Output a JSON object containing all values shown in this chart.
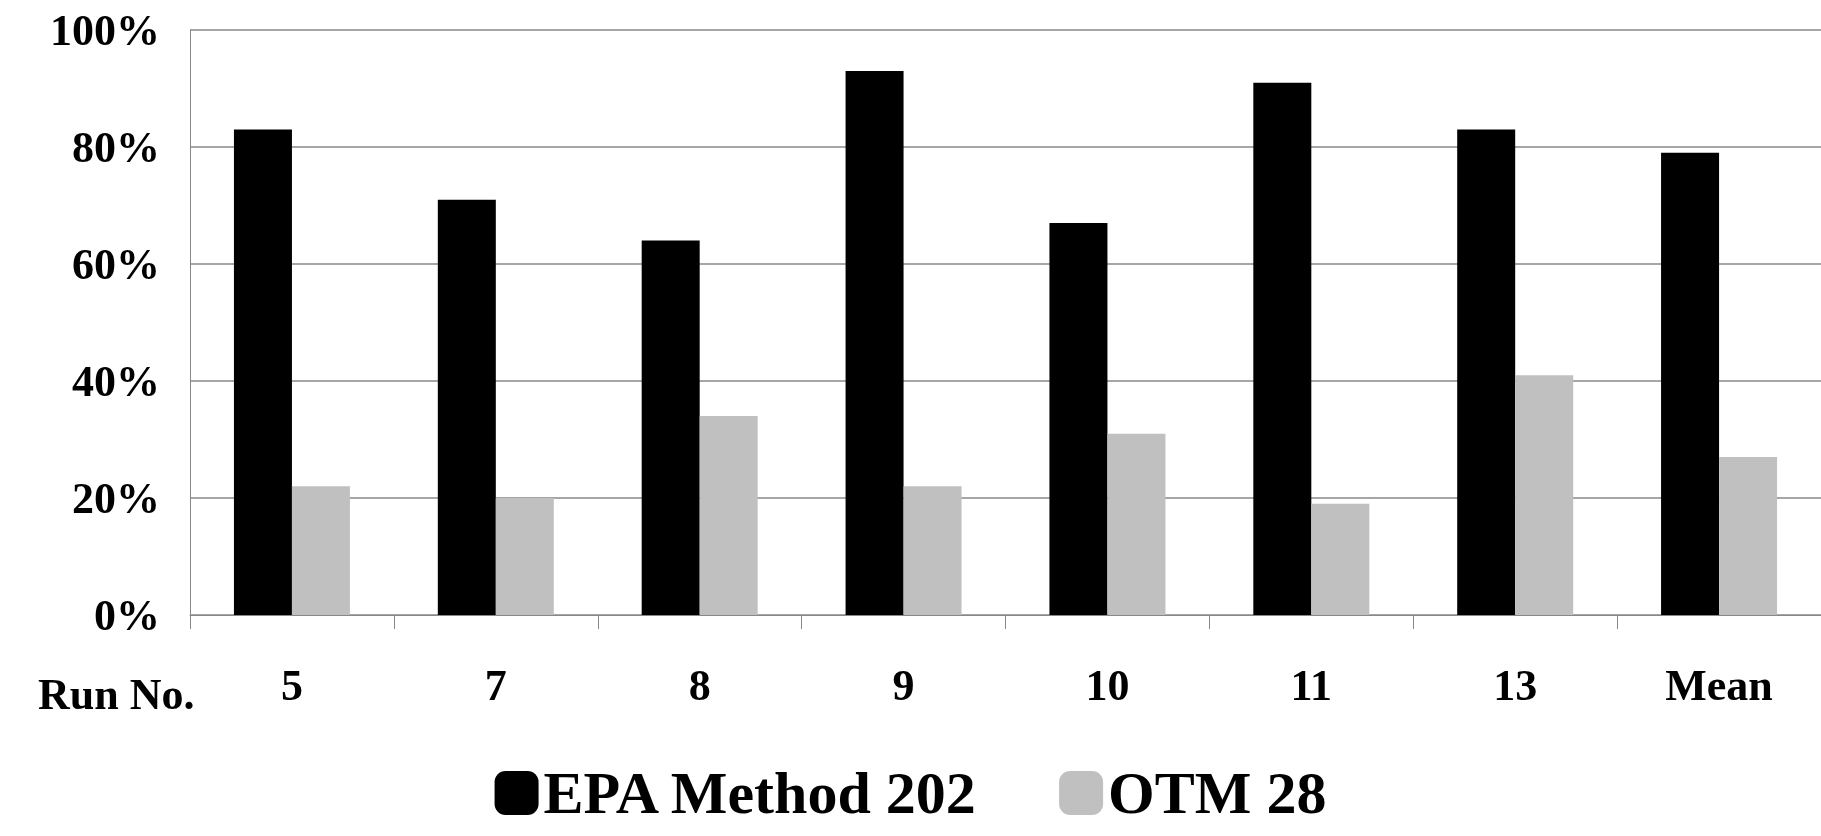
{
  "chart_data": {
    "type": "bar",
    "xlabel": "Run No.",
    "categories": [
      "5",
      "7",
      "8",
      "9",
      "10",
      "11",
      "13",
      "Mean"
    ],
    "series": [
      {
        "name": "EPA Method 202",
        "color": "#000000",
        "values": [
          83,
          71,
          64,
          93,
          67,
          91,
          83,
          79
        ]
      },
      {
        "name": "OTM 28",
        "color": "#c0c0c0",
        "values": [
          22,
          20,
          34,
          22,
          31,
          19,
          41,
          27
        ]
      }
    ],
    "ylim": [
      0,
      100
    ],
    "yticks": [
      {
        "value": 0,
        "label": "0%"
      },
      {
        "value": 20,
        "label": "20%"
      },
      {
        "value": 40,
        "label": "40%"
      },
      {
        "value": 60,
        "label": "60%"
      },
      {
        "value": 80,
        "label": "80%"
      },
      {
        "value": 100,
        "label": "100%"
      }
    ],
    "grid": "y",
    "legend": "bottom"
  }
}
